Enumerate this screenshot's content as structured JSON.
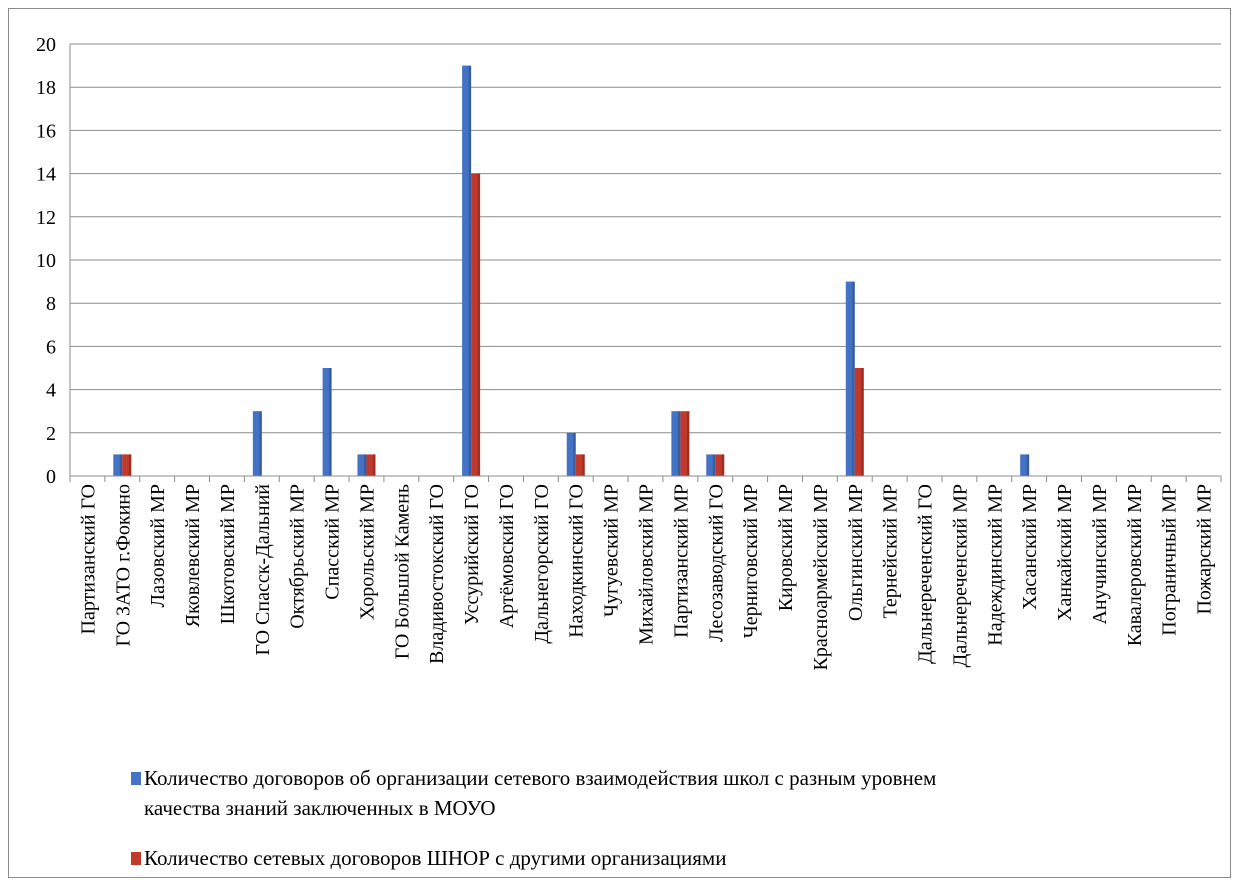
{
  "chart_data": {
    "type": "bar",
    "categories": [
      "Партизанский ГО",
      "ГО ЗАТО г.Фокино",
      "Лазовский МР",
      "Яковлевский МР",
      "Шкотовский МР",
      "ГО Спасск-Дальний",
      "Октябрьский МР",
      "Спасский МР",
      "Хорольский МР",
      "ГО Большой Камень",
      "Владивостокский ГО",
      "Уссурийский ГО",
      "Артёмовский ГО",
      "Дальнегорский ГО",
      "Находкинский ГО",
      "Чугуевский  МР",
      "Михайловский МР",
      "Партизанский МР",
      "Лесозаводский ГО",
      "Черниговский МР",
      "Кировский МР",
      "Красноармейский МР",
      "Ольгинский МР",
      "Тернейский МР",
      "Дальнереченский ГО",
      "Дальнереченский МР",
      "Надеждинский МР",
      "Хасанский МР",
      "Ханкайский МР",
      "Анучинский  МР",
      "Кавалеровский МР",
      "Пограничный МР",
      "Пожарский МР"
    ],
    "series": [
      {
        "name": "Количество договоров об организации сетевого взаимодействия школ с разным уровнем качества знаний заключенных в МОУО",
        "color": "#4472C4",
        "values": [
          0,
          1,
          0,
          0,
          0,
          3,
          0,
          5,
          1,
          0,
          0,
          19,
          0,
          0,
          2,
          0,
          0,
          3,
          1,
          0,
          0,
          0,
          9,
          0,
          0,
          0,
          0,
          1,
          0,
          0,
          0,
          0,
          0
        ]
      },
      {
        "name": "Количество сетевых договоров ШНОР с другими организациями",
        "color": "#C0392B",
        "values": [
          0,
          1,
          0,
          0,
          0,
          0,
          0,
          0,
          1,
          0,
          0,
          14,
          0,
          0,
          1,
          0,
          0,
          3,
          1,
          0,
          0,
          0,
          5,
          0,
          0,
          0,
          0,
          0,
          0,
          0,
          0,
          0,
          0
        ]
      }
    ],
    "ylim": [
      0,
      20
    ],
    "yticks": [
      "0",
      "2",
      "4",
      "6",
      "8",
      "10",
      "12",
      "14",
      "16",
      "18",
      "20"
    ],
    "grid": true,
    "legend_position": "bottom"
  },
  "legend": {
    "series1_line1": "Количество договоров об организации сетевого взаимодействия школ с разным уровнем",
    "series1_line2": "качества знаний заключенных в МОУО",
    "series2": "Количество сетевых договоров ШНОР с другими организациями"
  }
}
